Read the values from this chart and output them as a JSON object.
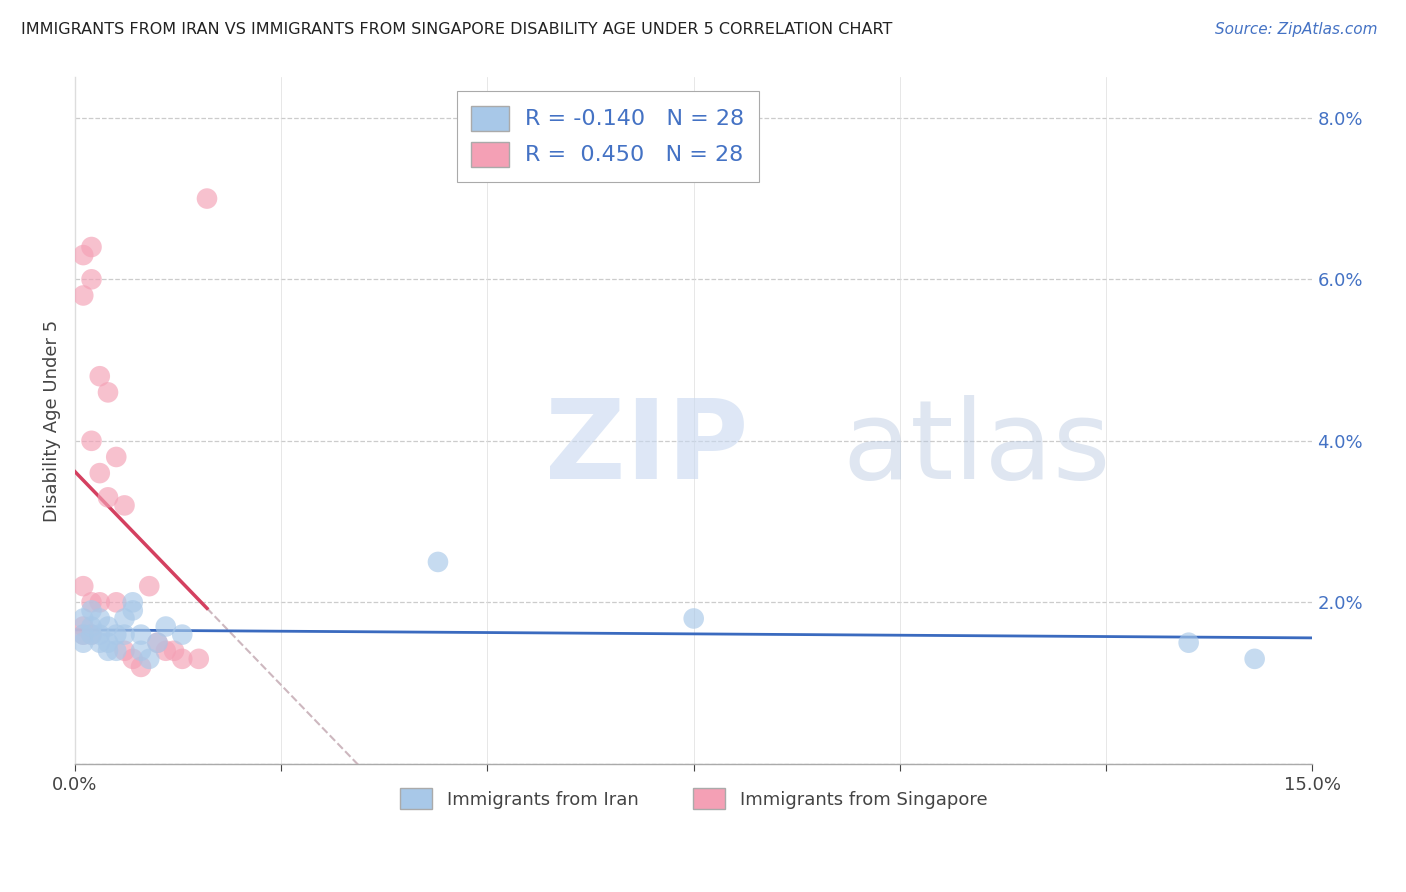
{
  "title": "IMMIGRANTS FROM IRAN VS IMMIGRANTS FROM SINGAPORE DISABILITY AGE UNDER 5 CORRELATION CHART",
  "source": "Source: ZipAtlas.com",
  "ylabel": "Disability Age Under 5",
  "xlim": [
    0.0,
    0.15
  ],
  "ylim": [
    0.0,
    0.085
  ],
  "xticks": [
    0.0,
    0.025,
    0.05,
    0.075,
    0.1,
    0.125,
    0.15
  ],
  "xtick_labels": [
    "0.0%",
    "",
    "",
    "",
    "",
    "",
    "15.0%"
  ],
  "yticks_right": [
    0.0,
    0.02,
    0.04,
    0.06,
    0.08
  ],
  "ytick_labels_right": [
    "",
    "2.0%",
    "4.0%",
    "6.0%",
    "8.0%"
  ],
  "legend_label_iran": "Immigrants from Iran",
  "legend_label_singapore": "Immigrants from Singapore",
  "R_iran": -0.14,
  "N_iran": 28,
  "R_singapore": 0.45,
  "N_singapore": 28,
  "iran_color": "#a8c8e8",
  "singapore_color": "#f4a0b5",
  "iran_line_color": "#3a6abf",
  "singapore_line_color": "#d44060",
  "watermark_zip": "ZIP",
  "watermark_atlas": "atlas",
  "iran_x": [
    0.001,
    0.001,
    0.001,
    0.002,
    0.002,
    0.002,
    0.003,
    0.003,
    0.003,
    0.004,
    0.004,
    0.004,
    0.005,
    0.005,
    0.006,
    0.006,
    0.007,
    0.007,
    0.008,
    0.008,
    0.009,
    0.01,
    0.011,
    0.013,
    0.044,
    0.075,
    0.135,
    0.143
  ],
  "iran_y": [
    0.018,
    0.016,
    0.015,
    0.019,
    0.017,
    0.016,
    0.018,
    0.016,
    0.015,
    0.017,
    0.015,
    0.014,
    0.016,
    0.014,
    0.018,
    0.016,
    0.02,
    0.019,
    0.016,
    0.014,
    0.013,
    0.015,
    0.017,
    0.016,
    0.025,
    0.018,
    0.015,
    0.013
  ],
  "singapore_x": [
    0.001,
    0.001,
    0.001,
    0.001,
    0.001,
    0.002,
    0.002,
    0.002,
    0.002,
    0.002,
    0.003,
    0.003,
    0.003,
    0.004,
    0.004,
    0.005,
    0.005,
    0.006,
    0.006,
    0.007,
    0.008,
    0.009,
    0.01,
    0.011,
    0.012,
    0.013,
    0.015,
    0.016
  ],
  "singapore_y": [
    0.016,
    0.017,
    0.022,
    0.058,
    0.063,
    0.04,
    0.06,
    0.064,
    0.02,
    0.016,
    0.048,
    0.036,
    0.02,
    0.046,
    0.033,
    0.02,
    0.038,
    0.032,
    0.014,
    0.013,
    0.012,
    0.022,
    0.015,
    0.014,
    0.014,
    0.013,
    0.013,
    0.07
  ]
}
